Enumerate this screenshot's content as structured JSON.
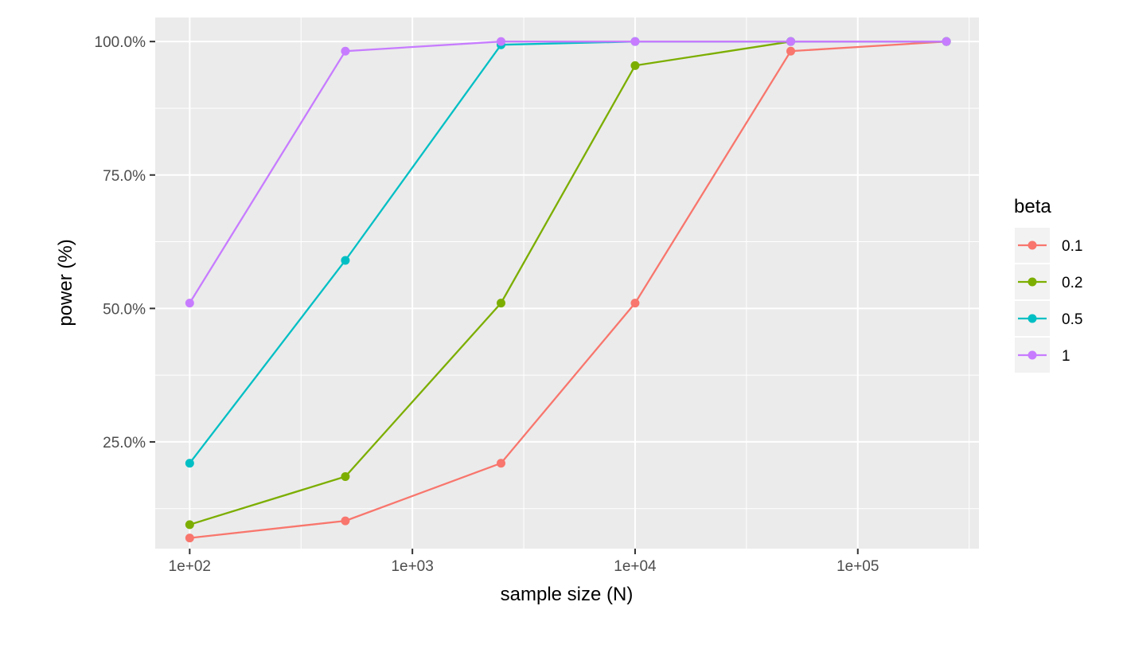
{
  "chart_data": {
    "type": "line",
    "xlabel": "sample size (N)",
    "ylabel": "power (%)",
    "x_scale": "log10",
    "xlim": [
      70,
      350000
    ],
    "ylim": [
      0.05,
      1.045
    ],
    "x_ticks": [
      {
        "value": 100,
        "label": "1e+02"
      },
      {
        "value": 1000,
        "label": "1e+03"
      },
      {
        "value": 10000,
        "label": "1e+04"
      },
      {
        "value": 100000,
        "label": "1e+05"
      }
    ],
    "y_ticks": [
      {
        "value": 0.25,
        "label": "25.0%"
      },
      {
        "value": 0.5,
        "label": "50.0%"
      },
      {
        "value": 0.75,
        "label": "75.0%"
      },
      {
        "value": 1.0,
        "label": "100.0%"
      }
    ],
    "x": [
      100,
      500,
      2500,
      10000,
      50000,
      250000
    ],
    "series": [
      {
        "name": "0.1",
        "color": "#F8766D",
        "values": [
          0.07,
          0.102,
          0.21,
          0.51,
          0.982,
          1.0
        ]
      },
      {
        "name": "0.2",
        "color": "#7CAE00",
        "values": [
          0.095,
          0.185,
          0.51,
          0.955,
          1.0,
          1.0
        ]
      },
      {
        "name": "0.5",
        "color": "#00BFC4",
        "values": [
          0.21,
          0.59,
          0.994,
          1.0,
          1.0,
          1.0
        ]
      },
      {
        "name": "1",
        "color": "#C77CFF",
        "values": [
          0.51,
          0.982,
          1.0,
          1.0,
          1.0,
          1.0
        ]
      }
    ],
    "legend": {
      "title": "beta",
      "position": "right"
    },
    "grid": true,
    "panel_background": "#EBEBEB"
  }
}
